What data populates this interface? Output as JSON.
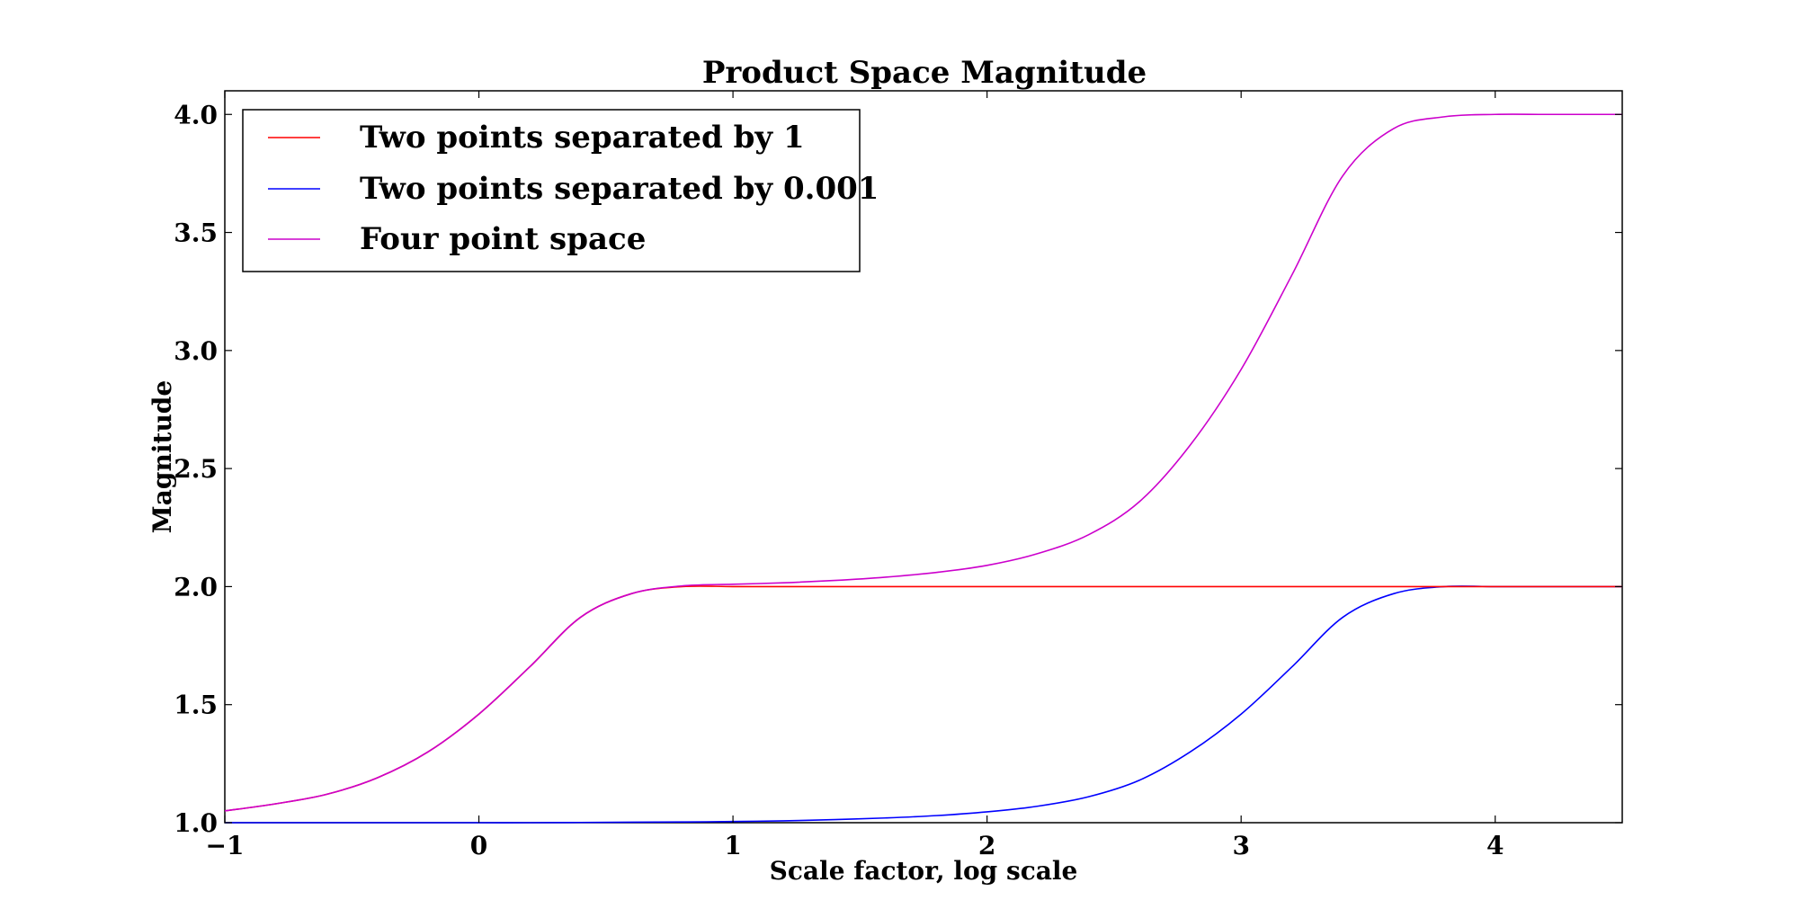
{
  "chart_data": {
    "type": "line",
    "title": "Product Space Magnitude",
    "xlabel": "Scale factor, log scale",
    "ylabel": "Magnitude",
    "xlim": [
      -1,
      4.5
    ],
    "ylim": [
      1.0,
      4.1
    ],
    "xticks": [
      -1,
      0,
      1,
      2,
      3,
      4
    ],
    "xtick_labels": [
      "−1",
      "0",
      "1",
      "2",
      "3",
      "4"
    ],
    "yticks": [
      1.0,
      1.5,
      2.0,
      2.5,
      3.0,
      3.5,
      4.0
    ],
    "ytick_labels": [
      "1.0",
      "1.5",
      "2.0",
      "2.5",
      "3.0",
      "3.5",
      "4.0"
    ],
    "grid": false,
    "legend_position": "top-left",
    "x": [
      -1.0,
      -0.8,
      -0.6,
      -0.4,
      -0.2,
      0.0,
      0.2,
      0.4,
      0.6,
      0.8,
      1.0,
      1.2,
      1.4,
      1.6,
      1.8,
      2.0,
      2.2,
      2.4,
      2.6,
      2.8,
      3.0,
      3.2,
      3.4,
      3.6,
      3.8,
      4.0,
      4.2,
      4.4,
      4.5
    ],
    "series": [
      {
        "name": "Two points separated by 1",
        "color": "#ff0000",
        "values": [
          1.05,
          1.08,
          1.12,
          1.19,
          1.3,
          1.46,
          1.66,
          1.87,
          1.97,
          2.0,
          2.0,
          2.0,
          2.0,
          2.0,
          2.0,
          2.0,
          2.0,
          2.0,
          2.0,
          2.0,
          2.0,
          2.0,
          2.0,
          2.0,
          2.0,
          2.0,
          2.0,
          2.0,
          2.0
        ]
      },
      {
        "name": "Two points separated by 0.001",
        "color": "#0000ff",
        "values": [
          1.0,
          1.0,
          1.0,
          1.0,
          1.0,
          1.0,
          1.0,
          1.001,
          1.002,
          1.003,
          1.005,
          1.008,
          1.013,
          1.02,
          1.03,
          1.046,
          1.07,
          1.11,
          1.18,
          1.3,
          1.46,
          1.66,
          1.87,
          1.97,
          2.0,
          2.0,
          2.0,
          2.0,
          2.0
        ]
      },
      {
        "name": "Four point space",
        "color": "#cc00cc",
        "values": [
          1.05,
          1.08,
          1.12,
          1.19,
          1.3,
          1.46,
          1.66,
          1.87,
          1.97,
          2.003,
          2.01,
          2.016,
          2.026,
          2.04,
          2.06,
          2.09,
          2.14,
          2.22,
          2.36,
          2.6,
          2.92,
          3.32,
          3.74,
          3.94,
          3.99,
          4.0,
          4.0,
          4.0,
          4.0
        ]
      }
    ]
  }
}
